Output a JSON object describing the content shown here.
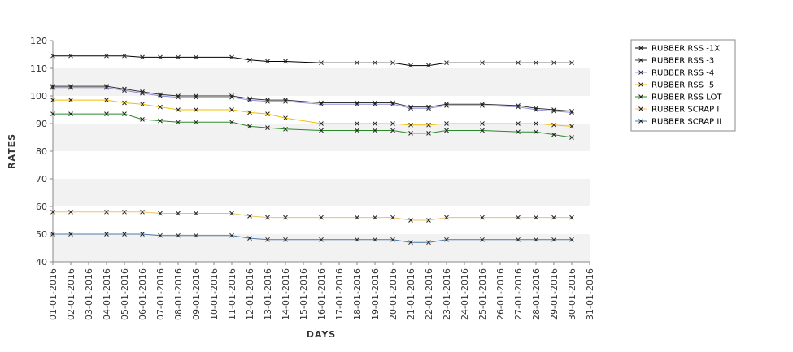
{
  "chart_data": {
    "type": "line",
    "title": "",
    "xlabel": "DAYS",
    "ylabel": "RATES",
    "ylim": [
      40,
      120
    ],
    "yticks": [
      40,
      50,
      60,
      70,
      80,
      90,
      100,
      110,
      120
    ],
    "grid": "alternating horizontal bands",
    "legend_position": "right",
    "categories": [
      "01-01-2016",
      "02-01-2016",
      "03-01-2016",
      "04-01-2016",
      "05-01-2016",
      "06-01-2016",
      "07-01-2016",
      "08-01-2016",
      "09-01-2016",
      "10-01-2016",
      "11-01-2016",
      "12-01-2016",
      "13-01-2016",
      "14-01-2016",
      "15-01-2016",
      "16-01-2016",
      "17-01-2016",
      "18-01-2016",
      "19-01-2016",
      "20-01-2016",
      "21-01-2016",
      "22-01-2016",
      "23-01-2016",
      "24-01-2016",
      "25-01-2016",
      "26-01-2016",
      "27-01-2016",
      "28-01-2016",
      "29-01-2016",
      "30-01-2016",
      "31-01-2016"
    ],
    "series": [
      {
        "name": "RUBBER RSS -1X",
        "color": "#000000",
        "points": [
          [
            "01-01-2016",
            114.5
          ],
          [
            "02-01-2016",
            114.5
          ],
          [
            "04-01-2016",
            114.5
          ],
          [
            "05-01-2016",
            114.5
          ],
          [
            "06-01-2016",
            114
          ],
          [
            "07-01-2016",
            114
          ],
          [
            "08-01-2016",
            114
          ],
          [
            "09-01-2016",
            114
          ],
          [
            "11-01-2016",
            114
          ],
          [
            "12-01-2016",
            113
          ],
          [
            "13-01-2016",
            112.5
          ],
          [
            "14-01-2016",
            112.5
          ],
          [
            "16-01-2016",
            112
          ],
          [
            "18-01-2016",
            112
          ],
          [
            "19-01-2016",
            112
          ],
          [
            "20-01-2016",
            112
          ],
          [
            "21-01-2016",
            111
          ],
          [
            "22-01-2016",
            111
          ],
          [
            "23-01-2016",
            112
          ],
          [
            "25-01-2016",
            112
          ],
          [
            "27-01-2016",
            112
          ],
          [
            "28-01-2016",
            112
          ],
          [
            "29-01-2016",
            112
          ],
          [
            "30-01-2016",
            112
          ]
        ]
      },
      {
        "name": "RUBBER RSS -3",
        "color": "#333333",
        "points": [
          [
            "01-01-2016",
            103.5
          ],
          [
            "02-01-2016",
            103.5
          ],
          [
            "04-01-2016",
            103.5
          ],
          [
            "05-01-2016",
            102.5
          ],
          [
            "06-01-2016",
            101.5
          ],
          [
            "07-01-2016",
            100.5
          ],
          [
            "08-01-2016",
            100
          ],
          [
            "09-01-2016",
            100
          ],
          [
            "11-01-2016",
            100
          ],
          [
            "12-01-2016",
            99
          ],
          [
            "13-01-2016",
            98.5
          ],
          [
            "14-01-2016",
            98.5
          ],
          [
            "16-01-2016",
            97.5
          ],
          [
            "18-01-2016",
            97.5
          ],
          [
            "19-01-2016",
            97.5
          ],
          [
            "20-01-2016",
            97.5
          ],
          [
            "21-01-2016",
            96
          ],
          [
            "22-01-2016",
            96
          ],
          [
            "23-01-2016",
            97
          ],
          [
            "25-01-2016",
            97
          ],
          [
            "27-01-2016",
            96.5
          ],
          [
            "28-01-2016",
            95.5
          ],
          [
            "29-01-2016",
            95
          ],
          [
            "30-01-2016",
            94.5
          ]
        ]
      },
      {
        "name": "RUBBER RSS -4",
        "color": "#9090d8",
        "points": [
          [
            "01-01-2016",
            103
          ],
          [
            "02-01-2016",
            103
          ],
          [
            "04-01-2016",
            103
          ],
          [
            "05-01-2016",
            102
          ],
          [
            "06-01-2016",
            101
          ],
          [
            "07-01-2016",
            100
          ],
          [
            "08-01-2016",
            99.5
          ],
          [
            "09-01-2016",
            99.5
          ],
          [
            "11-01-2016",
            99.5
          ],
          [
            "12-01-2016",
            98.5
          ],
          [
            "13-01-2016",
            98
          ],
          [
            "14-01-2016",
            98
          ],
          [
            "16-01-2016",
            97
          ],
          [
            "18-01-2016",
            97
          ],
          [
            "19-01-2016",
            97
          ],
          [
            "20-01-2016",
            97
          ],
          [
            "21-01-2016",
            95.5
          ],
          [
            "22-01-2016",
            95.5
          ],
          [
            "23-01-2016",
            96.5
          ],
          [
            "25-01-2016",
            96.5
          ],
          [
            "27-01-2016",
            96
          ],
          [
            "28-01-2016",
            95
          ],
          [
            "29-01-2016",
            94.5
          ],
          [
            "30-01-2016",
            94
          ]
        ]
      },
      {
        "name": "RUBBER RSS -5",
        "color": "#f0c000",
        "points": [
          [
            "01-01-2016",
            98.5
          ],
          [
            "02-01-2016",
            98.5
          ],
          [
            "04-01-2016",
            98.5
          ],
          [
            "05-01-2016",
            97.5
          ],
          [
            "06-01-2016",
            97
          ],
          [
            "07-01-2016",
            96
          ],
          [
            "08-01-2016",
            95
          ],
          [
            "09-01-2016",
            95
          ],
          [
            "11-01-2016",
            95
          ],
          [
            "12-01-2016",
            94
          ],
          [
            "13-01-2016",
            93.5
          ],
          [
            "14-01-2016",
            92
          ],
          [
            "16-01-2016",
            90
          ],
          [
            "18-01-2016",
            90
          ],
          [
            "19-01-2016",
            90
          ],
          [
            "20-01-2016",
            90
          ],
          [
            "21-01-2016",
            89.5
          ],
          [
            "22-01-2016",
            89.5
          ],
          [
            "23-01-2016",
            90
          ],
          [
            "25-01-2016",
            90
          ],
          [
            "27-01-2016",
            90
          ],
          [
            "28-01-2016",
            90
          ],
          [
            "29-01-2016",
            89.5
          ],
          [
            "30-01-2016",
            89
          ]
        ]
      },
      {
        "name": "RUBBER RSS LOT",
        "color": "#2a8a2a",
        "points": [
          [
            "01-01-2016",
            93.5
          ],
          [
            "02-01-2016",
            93.5
          ],
          [
            "04-01-2016",
            93.5
          ],
          [
            "05-01-2016",
            93.5
          ],
          [
            "06-01-2016",
            91.5
          ],
          [
            "07-01-2016",
            91
          ],
          [
            "08-01-2016",
            90.5
          ],
          [
            "09-01-2016",
            90.5
          ],
          [
            "11-01-2016",
            90.5
          ],
          [
            "12-01-2016",
            89
          ],
          [
            "13-01-2016",
            88.5
          ],
          [
            "14-01-2016",
            88
          ],
          [
            "16-01-2016",
            87.5
          ],
          [
            "18-01-2016",
            87.5
          ],
          [
            "19-01-2016",
            87.5
          ],
          [
            "20-01-2016",
            87.5
          ],
          [
            "21-01-2016",
            86.5
          ],
          [
            "22-01-2016",
            86.5
          ],
          [
            "23-01-2016",
            87.5
          ],
          [
            "25-01-2016",
            87.5
          ],
          [
            "27-01-2016",
            87
          ],
          [
            "28-01-2016",
            87
          ],
          [
            "29-01-2016",
            86
          ],
          [
            "30-01-2016",
            85
          ]
        ]
      },
      {
        "name": "RUBBER SCRAP I",
        "color": "#f0c060",
        "points": [
          [
            "01-01-2016",
            58
          ],
          [
            "02-01-2016",
            58
          ],
          [
            "04-01-2016",
            58
          ],
          [
            "05-01-2016",
            58
          ],
          [
            "06-01-2016",
            58
          ],
          [
            "07-01-2016",
            57.5
          ],
          [
            "08-01-2016",
            57.5
          ],
          [
            "09-01-2016",
            57.5
          ],
          [
            "11-01-2016",
            57.5
          ],
          [
            "12-01-2016",
            56.5
          ],
          [
            "13-01-2016",
            56
          ],
          [
            "14-01-2016",
            56
          ],
          [
            "16-01-2016",
            56
          ],
          [
            "18-01-2016",
            56
          ],
          [
            "19-01-2016",
            56
          ],
          [
            "20-01-2016",
            56
          ],
          [
            "21-01-2016",
            55
          ],
          [
            "22-01-2016",
            55
          ],
          [
            "23-01-2016",
            56
          ],
          [
            "25-01-2016",
            56
          ],
          [
            "27-01-2016",
            56
          ],
          [
            "28-01-2016",
            56
          ],
          [
            "29-01-2016",
            56
          ],
          [
            "30-01-2016",
            56
          ]
        ]
      },
      {
        "name": "RUBBER SCRAP II",
        "color": "#4a78a8",
        "points": [
          [
            "01-01-2016",
            50
          ],
          [
            "02-01-2016",
            50
          ],
          [
            "04-01-2016",
            50
          ],
          [
            "05-01-2016",
            50
          ],
          [
            "06-01-2016",
            50
          ],
          [
            "07-01-2016",
            49.5
          ],
          [
            "08-01-2016",
            49.5
          ],
          [
            "09-01-2016",
            49.5
          ],
          [
            "11-01-2016",
            49.5
          ],
          [
            "12-01-2016",
            48.5
          ],
          [
            "13-01-2016",
            48
          ],
          [
            "14-01-2016",
            48
          ],
          [
            "16-01-2016",
            48
          ],
          [
            "18-01-2016",
            48
          ],
          [
            "19-01-2016",
            48
          ],
          [
            "20-01-2016",
            48
          ],
          [
            "21-01-2016",
            47
          ],
          [
            "22-01-2016",
            47
          ],
          [
            "23-01-2016",
            48
          ],
          [
            "25-01-2016",
            48
          ],
          [
            "27-01-2016",
            48
          ],
          [
            "28-01-2016",
            48
          ],
          [
            "29-01-2016",
            48
          ],
          [
            "30-01-2016",
            48
          ]
        ]
      }
    ]
  }
}
